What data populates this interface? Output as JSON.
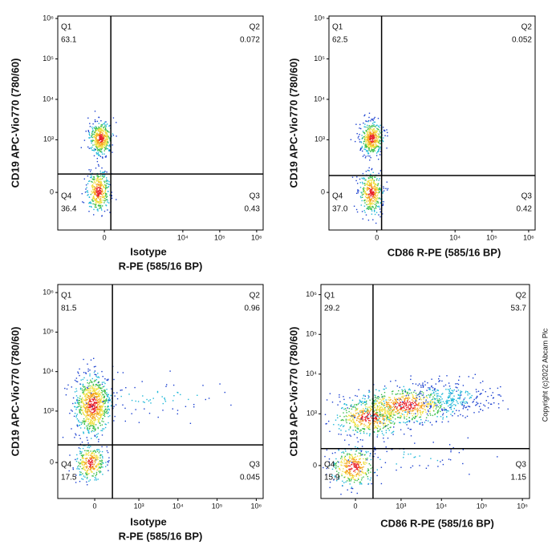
{
  "chart_data": [
    {
      "type": "flow-density",
      "y_label": "CD19 APC-Vio770 (780/60)",
      "x_label_lines": [
        "Isotype",
        "R-PE (585/16 BP)"
      ],
      "xlim": [
        -1370,
        1500000
      ],
      "ylim": [
        -420,
        1150000
      ],
      "xticks": [
        0,
        {
          "value": 10000,
          "label": "10⁴"
        },
        {
          "value": 100000,
          "label": "10⁵"
        },
        {
          "value": 1000000,
          "label": "10⁶"
        }
      ],
      "yticks": [
        0,
        {
          "value": 1000,
          "label": "10³"
        },
        {
          "value": 10000,
          "label": "10⁴"
        },
        {
          "value": 100000,
          "label": "10⁵"
        },
        {
          "value": 1000000,
          "label": "10⁶"
        }
      ],
      "gates": {
        "x": 62,
        "y": 125
      },
      "quadrants": [
        {
          "name": "Q1",
          "value": 63.1
        },
        {
          "name": "Q2",
          "value": 0.072
        },
        {
          "name": "Q3",
          "value": 0.43
        },
        {
          "name": "Q4",
          "value": 36.4
        }
      ]
    },
    {
      "type": "flow-density",
      "y_label": "CD19 APC-Vio770 (780/60)",
      "x_label_lines": [
        "CD86 R-PE  (585/16 BP)"
      ],
      "xlim": [
        -1500,
        1500000
      ],
      "ylim": [
        -420,
        1150000
      ],
      "xticks": [
        0,
        {
          "value": 10000,
          "label": "10⁴"
        },
        {
          "value": 100000,
          "label": "10⁵"
        },
        {
          "value": 1000000,
          "label": "10⁶"
        }
      ],
      "yticks": [
        0,
        {
          "value": 1000,
          "label": "10³"
        },
        {
          "value": 10000,
          "label": "10⁴"
        },
        {
          "value": 100000,
          "label": "10⁵"
        },
        {
          "value": 1000000,
          "label": "10⁶"
        }
      ],
      "gates": {
        "x": 45,
        "y": 112
      },
      "quadrants": [
        {
          "name": "Q1",
          "value": 62.5
        },
        {
          "name": "Q2",
          "value": 0.052
        },
        {
          "name": "Q3",
          "value": 0.42
        },
        {
          "name": "Q4",
          "value": 37,
          "label": "37.0"
        }
      ]
    },
    {
      "type": "flow-density",
      "y_label": "CD19 APC-Vio770 (780/60)",
      "x_label_lines": [
        "Isotype",
        "R-PE (585/16 BP)"
      ],
      "xlim": [
        -650,
        1500000
      ],
      "ylim": [
        -400,
        1600000
      ],
      "xticks": [
        0,
        {
          "value": 1000,
          "label": "10³"
        },
        {
          "value": 10000,
          "label": "10⁴"
        },
        {
          "value": 100000,
          "label": "10⁵"
        },
        {
          "value": 1000000,
          "label": "10⁶"
        }
      ],
      "yticks": [
        0,
        {
          "value": 1000,
          "label": "10³"
        },
        {
          "value": 10000,
          "label": "10⁴"
        },
        {
          "value": 100000,
          "label": "10⁵"
        },
        {
          "value": 1000000,
          "label": "10⁶"
        }
      ],
      "gates": {
        "x": 186,
        "y": 122
      },
      "quadrants": [
        {
          "name": "Q1",
          "value": 81.5
        },
        {
          "name": "Q2",
          "value": 0.96
        },
        {
          "name": "Q3",
          "value": 0.045
        },
        {
          "name": "Q4",
          "value": 17.5
        }
      ]
    },
    {
      "type": "flow-density",
      "y_label": "CD19 APC-Vio770 (780/60)",
      "x_label_lines": [
        "CD86 R-PE  (585/16 BP)"
      ],
      "xlim": [
        -525,
        1500000
      ],
      "ylim": [
        -330,
        1800000
      ],
      "xticks": [
        0,
        {
          "value": 1000,
          "label": "10³"
        },
        {
          "value": 10000,
          "label": "10⁴"
        },
        {
          "value": 100000,
          "label": "10⁵"
        },
        {
          "value": 1000000,
          "label": "10⁶"
        }
      ],
      "yticks": [
        0,
        {
          "value": 1000,
          "label": "10³"
        },
        {
          "value": 10000,
          "label": "10⁴"
        },
        {
          "value": 100000,
          "label": "10⁵"
        },
        {
          "value": 1000000,
          "label": "10⁶"
        }
      ],
      "gates": {
        "x": 176,
        "y": 115
      },
      "quadrants": [
        {
          "name": "Q1",
          "value": 29.2
        },
        {
          "name": "Q2",
          "value": 53.7
        },
        {
          "name": "Q3",
          "value": 1.15
        },
        {
          "name": "Q4",
          "value": 15.9
        }
      ]
    }
  ],
  "copyright": "Copyright (c)2022 Abcam Plc"
}
